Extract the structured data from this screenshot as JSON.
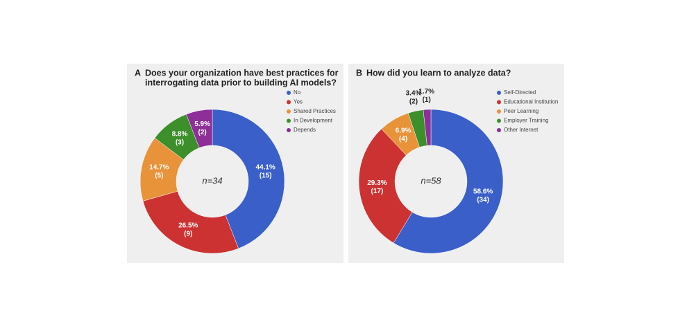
{
  "chart_data": [
    {
      "type": "pie",
      "panel": "A",
      "title": [
        "Does your organization have best practices for",
        "interrogating data prior to building AI models?"
      ],
      "center_label": "n=34",
      "categories": [
        "No",
        "Yes",
        "Shared Practices",
        "In Development",
        "Depends"
      ],
      "values": [
        44.1,
        26.5,
        14.7,
        8.8,
        5.9
      ],
      "value_labels": [
        "44.1%",
        "26.5%",
        "14.7%",
        "8.8%",
        "5.9%"
      ],
      "counts": [
        15,
        9,
        5,
        3,
        2
      ],
      "count_labels": [
        "(15)",
        "(9)",
        "(5)",
        "(3)",
        "(2)"
      ],
      "colors": [
        "#3a5fc9",
        "#cc3232",
        "#e8923a",
        "#3c8f2a",
        "#8e2e98"
      ]
    },
    {
      "type": "pie",
      "panel": "B",
      "title": [
        "How did you learn to analyze data?"
      ],
      "center_label": "n=58",
      "categories": [
        "Self-Directed",
        "Educational Institution",
        "Peer Learning",
        "Employer Training",
        "Other Internet"
      ],
      "values": [
        58.6,
        29.3,
        6.9,
        3.4,
        1.7
      ],
      "value_labels": [
        "58.6%",
        "29.3%",
        "6.9%",
        "3.4%",
        "1.7%"
      ],
      "counts": [
        34,
        17,
        4,
        2,
        1
      ],
      "count_labels": [
        "(34)",
        "(17)",
        "(4)",
        "(2)",
        "(1)"
      ],
      "colors": [
        "#3a5fc9",
        "#cc3232",
        "#e8923a",
        "#3c8f2a",
        "#8e2e98"
      ]
    }
  ]
}
